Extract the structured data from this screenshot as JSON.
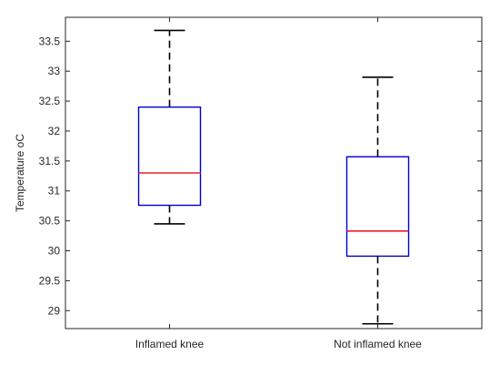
{
  "chart_data": {
    "type": "box",
    "title": "",
    "xlabel": "",
    "ylabel": "Temperature oC",
    "ylim": [
      28.7,
      33.9
    ],
    "yticks": [
      29,
      29.5,
      30,
      30.5,
      31,
      31.5,
      32,
      32.5,
      33,
      33.5
    ],
    "categories": [
      "Inflamed knee",
      "Not inflamed knee"
    ],
    "boxes": [
      {
        "category": "Inflamed knee",
        "whisker_low": 30.45,
        "q1": 30.76,
        "median": 31.3,
        "q3": 32.4,
        "whisker_high": 33.68
      },
      {
        "category": "Not inflamed knee",
        "whisker_low": 28.78,
        "q1": 29.91,
        "median": 30.33,
        "q3": 31.57,
        "whisker_high": 32.9
      }
    ],
    "grid": false,
    "colors": {
      "box": "#0000c8",
      "median": "#e8212b",
      "whisker": "#000000",
      "axis": "#262626"
    }
  }
}
